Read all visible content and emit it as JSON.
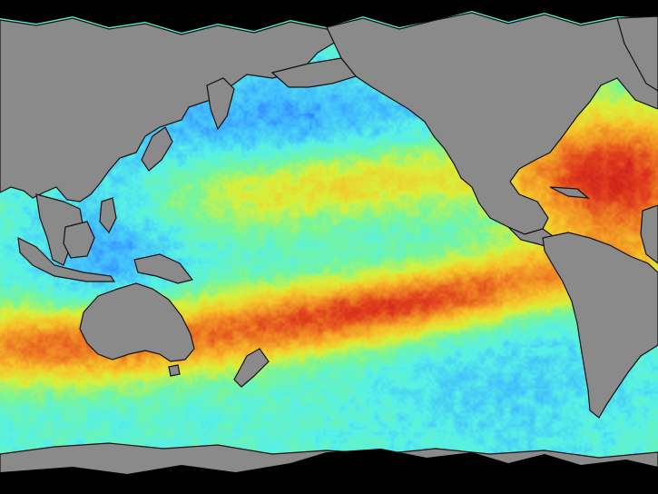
{
  "map": {
    "projection": "equirectangular",
    "region": "Pacific basin",
    "colors": {
      "land": "#8a8a8a",
      "no_data": "#000000",
      "coast_outline": "#111111",
      "scale_stops": [
        "#2a5cff",
        "#3fb7ff",
        "#56f0e8",
        "#78f59a",
        "#d8f03a",
        "#f6c52a",
        "#f08a24",
        "#e0401e",
        "#c8141a"
      ]
    },
    "land_masses": [
      {
        "id": "asia",
        "icon": "landmass-icon"
      },
      {
        "id": "north-america",
        "icon": "landmass-icon"
      },
      {
        "id": "south-america",
        "icon": "landmass-icon"
      },
      {
        "id": "australia",
        "icon": "landmass-icon"
      },
      {
        "id": "antarctica",
        "icon": "landmass-icon"
      },
      {
        "id": "greenland",
        "icon": "landmass-icon"
      }
    ],
    "anomaly_features": [
      {
        "id": "equatorial-pacific-band",
        "level": "high"
      },
      {
        "id": "north-pacific-band",
        "level": "medium-high"
      },
      {
        "id": "south-indian-band",
        "level": "high"
      },
      {
        "id": "caribbean-atlantic",
        "level": "high"
      }
    ]
  }
}
